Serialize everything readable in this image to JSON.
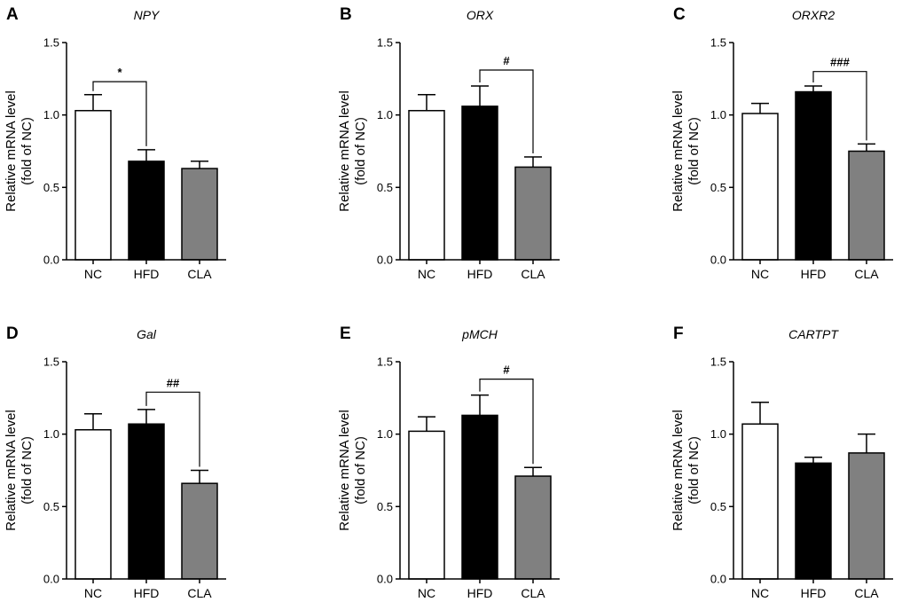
{
  "chart_data": [
    {
      "type": "bar",
      "panel": "A",
      "title": "NPY",
      "categories": [
        "NC",
        "HFD",
        "CLA"
      ],
      "values": [
        1.03,
        0.68,
        0.63
      ],
      "errors": [
        0.11,
        0.08,
        0.05
      ],
      "colors": [
        "#ffffff",
        "#000000",
        "#808080"
      ],
      "ylabel_line1": "Relative mRNA level",
      "ylabel_line2": "(fold of NC)",
      "ylim": [
        0,
        1.5
      ],
      "yticks": [
        "0.0",
        "0.5",
        "1.0",
        "1.5"
      ],
      "significance": {
        "from": 0,
        "to": 1,
        "label": "*",
        "level": 1.23
      }
    },
    {
      "type": "bar",
      "panel": "B",
      "title": "ORX",
      "categories": [
        "NC",
        "HFD",
        "CLA"
      ],
      "values": [
        1.03,
        1.06,
        0.64
      ],
      "errors": [
        0.11,
        0.14,
        0.07
      ],
      "colors": [
        "#ffffff",
        "#000000",
        "#808080"
      ],
      "ylabel_line1": "Relative mRNA level",
      "ylabel_line2": "(fold of NC)",
      "ylim": [
        0,
        1.5
      ],
      "yticks": [
        "0.0",
        "0.5",
        "1.0",
        "1.5"
      ],
      "significance": {
        "from": 1,
        "to": 2,
        "label": "#",
        "level": 1.31
      }
    },
    {
      "type": "bar",
      "panel": "C",
      "title": "ORXR2",
      "categories": [
        "NC",
        "HFD",
        "CLA"
      ],
      "values": [
        1.01,
        1.16,
        0.75
      ],
      "errors": [
        0.07,
        0.04,
        0.05
      ],
      "colors": [
        "#ffffff",
        "#000000",
        "#808080"
      ],
      "ylabel_line1": "Relative mRNA level",
      "ylabel_line2": "(fold of NC)",
      "ylim": [
        0,
        1.5
      ],
      "yticks": [
        "0.0",
        "0.5",
        "1.0",
        "1.5"
      ],
      "significance": {
        "from": 1,
        "to": 2,
        "label": "###",
        "level": 1.3
      }
    },
    {
      "type": "bar",
      "panel": "D",
      "title": "Gal",
      "categories": [
        "NC",
        "HFD",
        "CLA"
      ],
      "values": [
        1.03,
        1.07,
        0.66
      ],
      "errors": [
        0.11,
        0.1,
        0.09
      ],
      "colors": [
        "#ffffff",
        "#000000",
        "#808080"
      ],
      "ylabel_line1": "Relative mRNA level",
      "ylabel_line2": "(fold of NC)",
      "ylim": [
        0,
        1.5
      ],
      "yticks": [
        "0.0",
        "0.5",
        "1.0",
        "1.5"
      ],
      "significance": {
        "from": 1,
        "to": 2,
        "label": "##",
        "level": 1.29
      }
    },
    {
      "type": "bar",
      "panel": "E",
      "title": "pMCH",
      "categories": [
        "NC",
        "HFD",
        "CLA"
      ],
      "values": [
        1.02,
        1.13,
        0.71
      ],
      "errors": [
        0.1,
        0.14,
        0.06
      ],
      "colors": [
        "#ffffff",
        "#000000",
        "#808080"
      ],
      "ylabel_line1": "Relative mRNA level",
      "ylabel_line2": "(fold of NC)",
      "ylim": [
        0,
        1.5
      ],
      "yticks": [
        "0.0",
        "0.5",
        "1.0",
        "1.5"
      ],
      "significance": {
        "from": 1,
        "to": 2,
        "label": "#",
        "level": 1.38
      }
    },
    {
      "type": "bar",
      "panel": "F",
      "title": "CARTPT",
      "categories": [
        "NC",
        "HFD",
        "CLA"
      ],
      "values": [
        1.07,
        0.8,
        0.87
      ],
      "errors": [
        0.15,
        0.04,
        0.13
      ],
      "colors": [
        "#ffffff",
        "#000000",
        "#808080"
      ],
      "ylabel_line1": "Relative mRNA level",
      "ylabel_line2": "(fold of NC)",
      "ylim": [
        0,
        1.5
      ],
      "yticks": [
        "0.0",
        "0.5",
        "1.0",
        "1.5"
      ],
      "significance": null
    }
  ]
}
